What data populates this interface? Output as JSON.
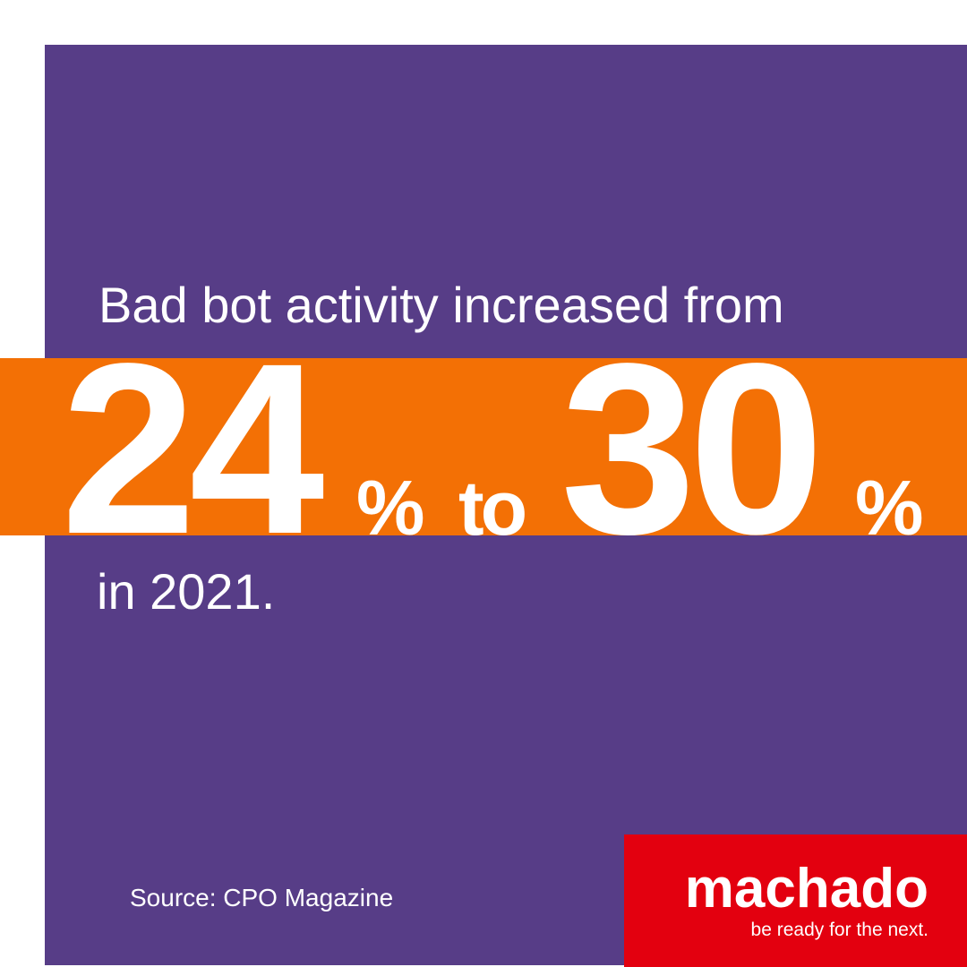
{
  "headline": "Bad bot activity increased from",
  "stat": {
    "from": 24,
    "from_unit": "%",
    "connector": "to",
    "to": 30,
    "to_unit": "%"
  },
  "period": "in 2021.",
  "source": "Source: CPO Magazine",
  "brand": {
    "name": "machado",
    "tagline": "be ready for the next."
  }
}
